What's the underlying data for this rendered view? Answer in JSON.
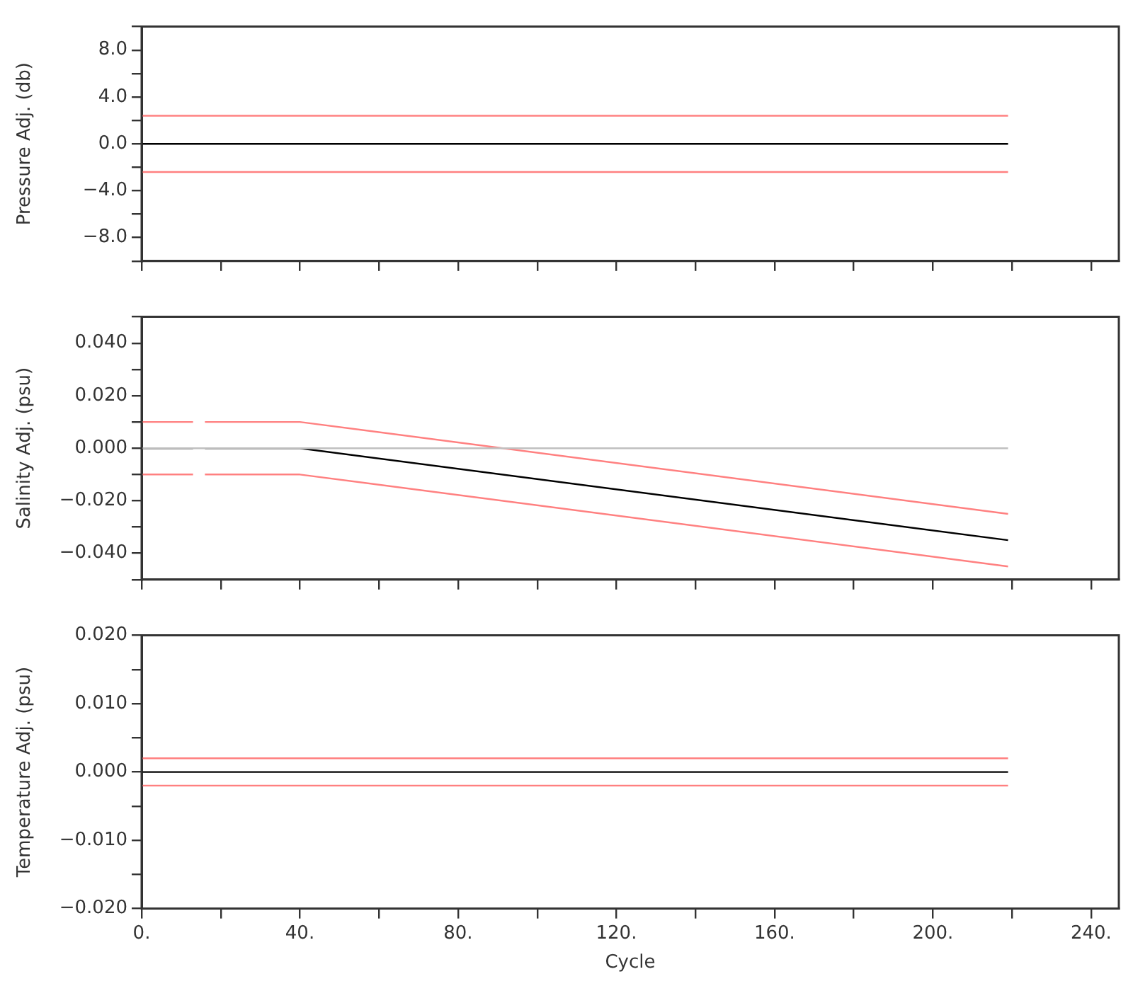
{
  "chart_data": [
    {
      "type": "line",
      "ylabel": "Pressure Adj. (db)",
      "xlim": [
        0,
        247
      ],
      "xticks": [
        {
          "value": 0,
          "label": null
        },
        {
          "value": 20,
          "label": null
        },
        {
          "value": 40,
          "label": null
        },
        {
          "value": 60,
          "label": null
        },
        {
          "value": 80,
          "label": null
        },
        {
          "value": 100,
          "label": null
        },
        {
          "value": 120,
          "label": null
        },
        {
          "value": 140,
          "label": null
        },
        {
          "value": 160,
          "label": null
        },
        {
          "value": 180,
          "label": null
        },
        {
          "value": 200,
          "label": null
        },
        {
          "value": 220,
          "label": null
        },
        {
          "value": 240,
          "label": null
        }
      ],
      "ylim": [
        -10,
        10
      ],
      "yticks": [
        {
          "value": -10,
          "label": null
        },
        {
          "value": -8,
          "label": "−8.0"
        },
        {
          "value": -6,
          "label": null
        },
        {
          "value": -4,
          "label": "−4.0"
        },
        {
          "value": -2,
          "label": null
        },
        {
          "value": 0,
          "label": "0.0"
        },
        {
          "value": 2,
          "label": null
        },
        {
          "value": 4,
          "label": "4.0"
        },
        {
          "value": 6,
          "label": null
        },
        {
          "value": 8,
          "label": "8.0"
        },
        {
          "value": 10,
          "label": null
        }
      ],
      "tick_labels": "y",
      "grid": false,
      "legend": false,
      "marker": "none",
      "line_style": "solid",
      "series": [
        {
          "color": "#ff8080",
          "x": [
            0,
            219
          ],
          "values": [
            2.4,
            2.4
          ]
        },
        {
          "color": "#ff8080",
          "x": [
            0,
            219
          ],
          "values": [
            -2.4,
            -2.4
          ]
        },
        {
          "color": "#000000",
          "x": [
            0,
            219
          ],
          "values": [
            0,
            0
          ]
        }
      ]
    },
    {
      "type": "line",
      "ylabel": "Salinity Adj. (psu)",
      "xlim": [
        0,
        247
      ],
      "xticks": [
        {
          "value": 0,
          "label": null
        },
        {
          "value": 20,
          "label": null
        },
        {
          "value": 40,
          "label": null
        },
        {
          "value": 60,
          "label": null
        },
        {
          "value": 80,
          "label": null
        },
        {
          "value": 100,
          "label": null
        },
        {
          "value": 120,
          "label": null
        },
        {
          "value": 140,
          "label": null
        },
        {
          "value": 160,
          "label": null
        },
        {
          "value": 180,
          "label": null
        },
        {
          "value": 200,
          "label": null
        },
        {
          "value": 220,
          "label": null
        },
        {
          "value": 240,
          "label": null
        }
      ],
      "ylim": [
        -0.05,
        0.05
      ],
      "yticks": [
        {
          "value": -0.05,
          "label": null
        },
        {
          "value": -0.04,
          "label": "−0.040"
        },
        {
          "value": -0.03,
          "label": null
        },
        {
          "value": -0.02,
          "label": "−0.020"
        },
        {
          "value": -0.01,
          "label": null
        },
        {
          "value": 0,
          "label": "0.000"
        },
        {
          "value": 0.01,
          "label": null
        },
        {
          "value": 0.02,
          "label": "0.020"
        },
        {
          "value": 0.03,
          "label": null
        },
        {
          "value": 0.04,
          "label": "0.040"
        },
        {
          "value": 0.05,
          "label": null
        }
      ],
      "tick_labels": "y",
      "grid": false,
      "legend": false,
      "marker": "none",
      "line_style": "solid",
      "series": [
        {
          "color": "#c0c0c0",
          "x": [
            0,
            219
          ],
          "values": [
            0,
            0
          ]
        },
        {
          "color": "#ff8080",
          "x": [
            0,
            13,
            14,
            16,
            40,
            219
          ],
          "values": [
            0.01,
            0.01,
            null,
            0.01,
            0.01,
            -0.025
          ]
        },
        {
          "color": "#ff8080",
          "x": [
            0,
            13,
            14,
            16,
            40,
            219
          ],
          "values": [
            -0.01,
            -0.01,
            null,
            -0.01,
            -0.01,
            -0.045
          ]
        },
        {
          "color": "#000000",
          "x": [
            0,
            13,
            14,
            16,
            40,
            219
          ],
          "values": [
            0,
            0,
            null,
            0,
            0,
            -0.035
          ]
        }
      ]
    },
    {
      "type": "line",
      "xlabel": "Cycle",
      "ylabel": "Temperature Adj. (psu)",
      "xlim": [
        0,
        247
      ],
      "xticks": [
        {
          "value": 0,
          "label": "0."
        },
        {
          "value": 20,
          "label": null
        },
        {
          "value": 40,
          "label": "40."
        },
        {
          "value": 60,
          "label": null
        },
        {
          "value": 80,
          "label": "80."
        },
        {
          "value": 100,
          "label": null
        },
        {
          "value": 120,
          "label": "120."
        },
        {
          "value": 140,
          "label": null
        },
        {
          "value": 160,
          "label": "160."
        },
        {
          "value": 180,
          "label": null
        },
        {
          "value": 200,
          "label": "200."
        },
        {
          "value": 220,
          "label": null
        },
        {
          "value": 240,
          "label": "240."
        }
      ],
      "ylim": [
        -0.02,
        0.02
      ],
      "yticks": [
        {
          "value": -0.02,
          "label": "−0.020"
        },
        {
          "value": -0.015,
          "label": null
        },
        {
          "value": -0.01,
          "label": "−0.010"
        },
        {
          "value": -0.005,
          "label": null
        },
        {
          "value": 0,
          "label": "0.000"
        },
        {
          "value": 0.005,
          "label": null
        },
        {
          "value": 0.01,
          "label": "0.010"
        },
        {
          "value": 0.015,
          "label": null
        },
        {
          "value": 0.02,
          "label": "0.020"
        }
      ],
      "grid": false,
      "legend": false,
      "marker": "none",
      "line_style": "solid",
      "series": [
        {
          "color": "#ff8080",
          "x": [
            0,
            219
          ],
          "values": [
            0.002,
            0.002
          ]
        },
        {
          "color": "#ff8080",
          "x": [
            0,
            219
          ],
          "values": [
            -0.002,
            -0.002
          ]
        },
        {
          "color": "#000000",
          "x": [
            0,
            219
          ],
          "values": [
            0,
            0
          ]
        }
      ]
    }
  ]
}
